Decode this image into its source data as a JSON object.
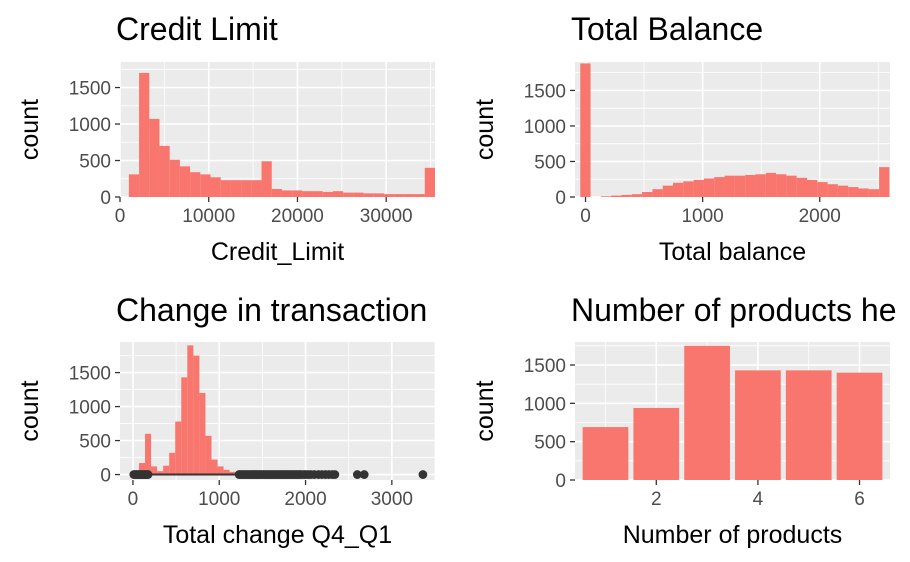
{
  "chart_data": [
    {
      "type": "bar",
      "title": "Credit Limit",
      "xlabel": "Credit_Limit",
      "ylabel": "count",
      "xlim": [
        0,
        35500
      ],
      "ylim": [
        0,
        1850
      ],
      "xticks": [
        0,
        10000,
        20000,
        30000
      ],
      "yticks": [
        0,
        500,
        1000,
        1500
      ],
      "bin_edges": [
        1000,
        2150,
        3300,
        4450,
        5600,
        6750,
        7900,
        9050,
        10200,
        11350,
        12500,
        13650,
        14800,
        15950,
        17100,
        18250,
        19400,
        20550,
        21700,
        22850,
        24000,
        25150,
        26300,
        27450,
        28600,
        29750,
        30900,
        32050,
        33200,
        34350,
        35500
      ],
      "values": [
        310,
        1700,
        1070,
        700,
        510,
        420,
        340,
        310,
        270,
        230,
        230,
        230,
        230,
        490,
        110,
        90,
        90,
        80,
        80,
        70,
        80,
        60,
        60,
        50,
        50,
        40,
        40,
        40,
        40,
        400
      ],
      "color": "#f8766d",
      "panel_background": "#ebebeb",
      "grid": true
    },
    {
      "type": "bar",
      "title": "Total Balance",
      "xlabel": "Total balance",
      "ylabel": "count",
      "xlim": [
        -90,
        2600
      ],
      "ylim": [
        0,
        1900
      ],
      "xticks": [
        0,
        1000,
        2000
      ],
      "yticks": [
        0,
        500,
        1000,
        1500
      ],
      "bin_edges": [
        -45,
        43,
        131,
        219,
        307,
        395,
        483,
        571,
        659,
        747,
        835,
        923,
        1011,
        1099,
        1187,
        1275,
        1363,
        1451,
        1539,
        1627,
        1715,
        1803,
        1891,
        1979,
        2067,
        2155,
        2243,
        2331,
        2419,
        2507,
        2595
      ],
      "values": [
        1880,
        0,
        10,
        20,
        30,
        40,
        70,
        110,
        160,
        200,
        220,
        240,
        260,
        280,
        300,
        300,
        310,
        320,
        340,
        320,
        300,
        270,
        240,
        210,
        180,
        160,
        140,
        120,
        110,
        420
      ],
      "color": "#f8766d",
      "panel_background": "#ebebeb",
      "grid": true
    },
    {
      "type": "bar",
      "title": "Change in transaction",
      "xlabel": "Total change Q4_Q1",
      "ylabel": "count",
      "xlim": [
        -150,
        3500
      ],
      "ylim": [
        -80,
        1950
      ],
      "xticks": [
        0,
        1000,
        2000,
        3000
      ],
      "yticks": [
        0,
        500,
        1000,
        1500
      ],
      "bin_edges": [
        0,
        70,
        140,
        210,
        280,
        350,
        420,
        490,
        560,
        630,
        700,
        770,
        840,
        910,
        980,
        1050,
        1120,
        1190,
        1260
      ],
      "values": [
        10,
        170,
        600,
        120,
        50,
        130,
        320,
        780,
        1430,
        1900,
        1750,
        1200,
        570,
        220,
        120,
        70,
        40,
        20
      ],
      "boxplot": {
        "whisker_low": 0,
        "whisker_high": 1230,
        "outliers": [
          10,
          25,
          40,
          55,
          70,
          85,
          100,
          115,
          130,
          145,
          160,
          175,
          1230,
          1250,
          1270,
          1290,
          1310,
          1330,
          1350,
          1370,
          1390,
          1410,
          1430,
          1450,
          1470,
          1490,
          1510,
          1530,
          1550,
          1570,
          1590,
          1610,
          1630,
          1650,
          1670,
          1690,
          1710,
          1730,
          1750,
          1770,
          1790,
          1810,
          1830,
          1850,
          1870,
          1890,
          1910,
          1930,
          1950,
          1980,
          2000,
          2030,
          2060,
          2100,
          2150,
          2190,
          2230,
          2270,
          2310,
          2340,
          2600,
          2680,
          3360
        ]
      },
      "color": "#f8766d",
      "boxplot_color": "#333333",
      "panel_background": "#ebebeb",
      "grid": true
    },
    {
      "type": "bar",
      "title": "Number of products he",
      "xlabel": "Number of products",
      "ylabel": "count",
      "xlim": [
        0.4,
        6.6
      ],
      "ylim": [
        0,
        1800
      ],
      "xticks": [
        2,
        4,
        6
      ],
      "yticks": [
        0,
        500,
        1000,
        1500
      ],
      "categories": [
        1,
        2,
        3,
        4,
        5,
        6
      ],
      "values": [
        690,
        940,
        1750,
        1430,
        1430,
        1400
      ],
      "color": "#f8766d",
      "panel_background": "#ebebeb",
      "grid": true
    }
  ]
}
